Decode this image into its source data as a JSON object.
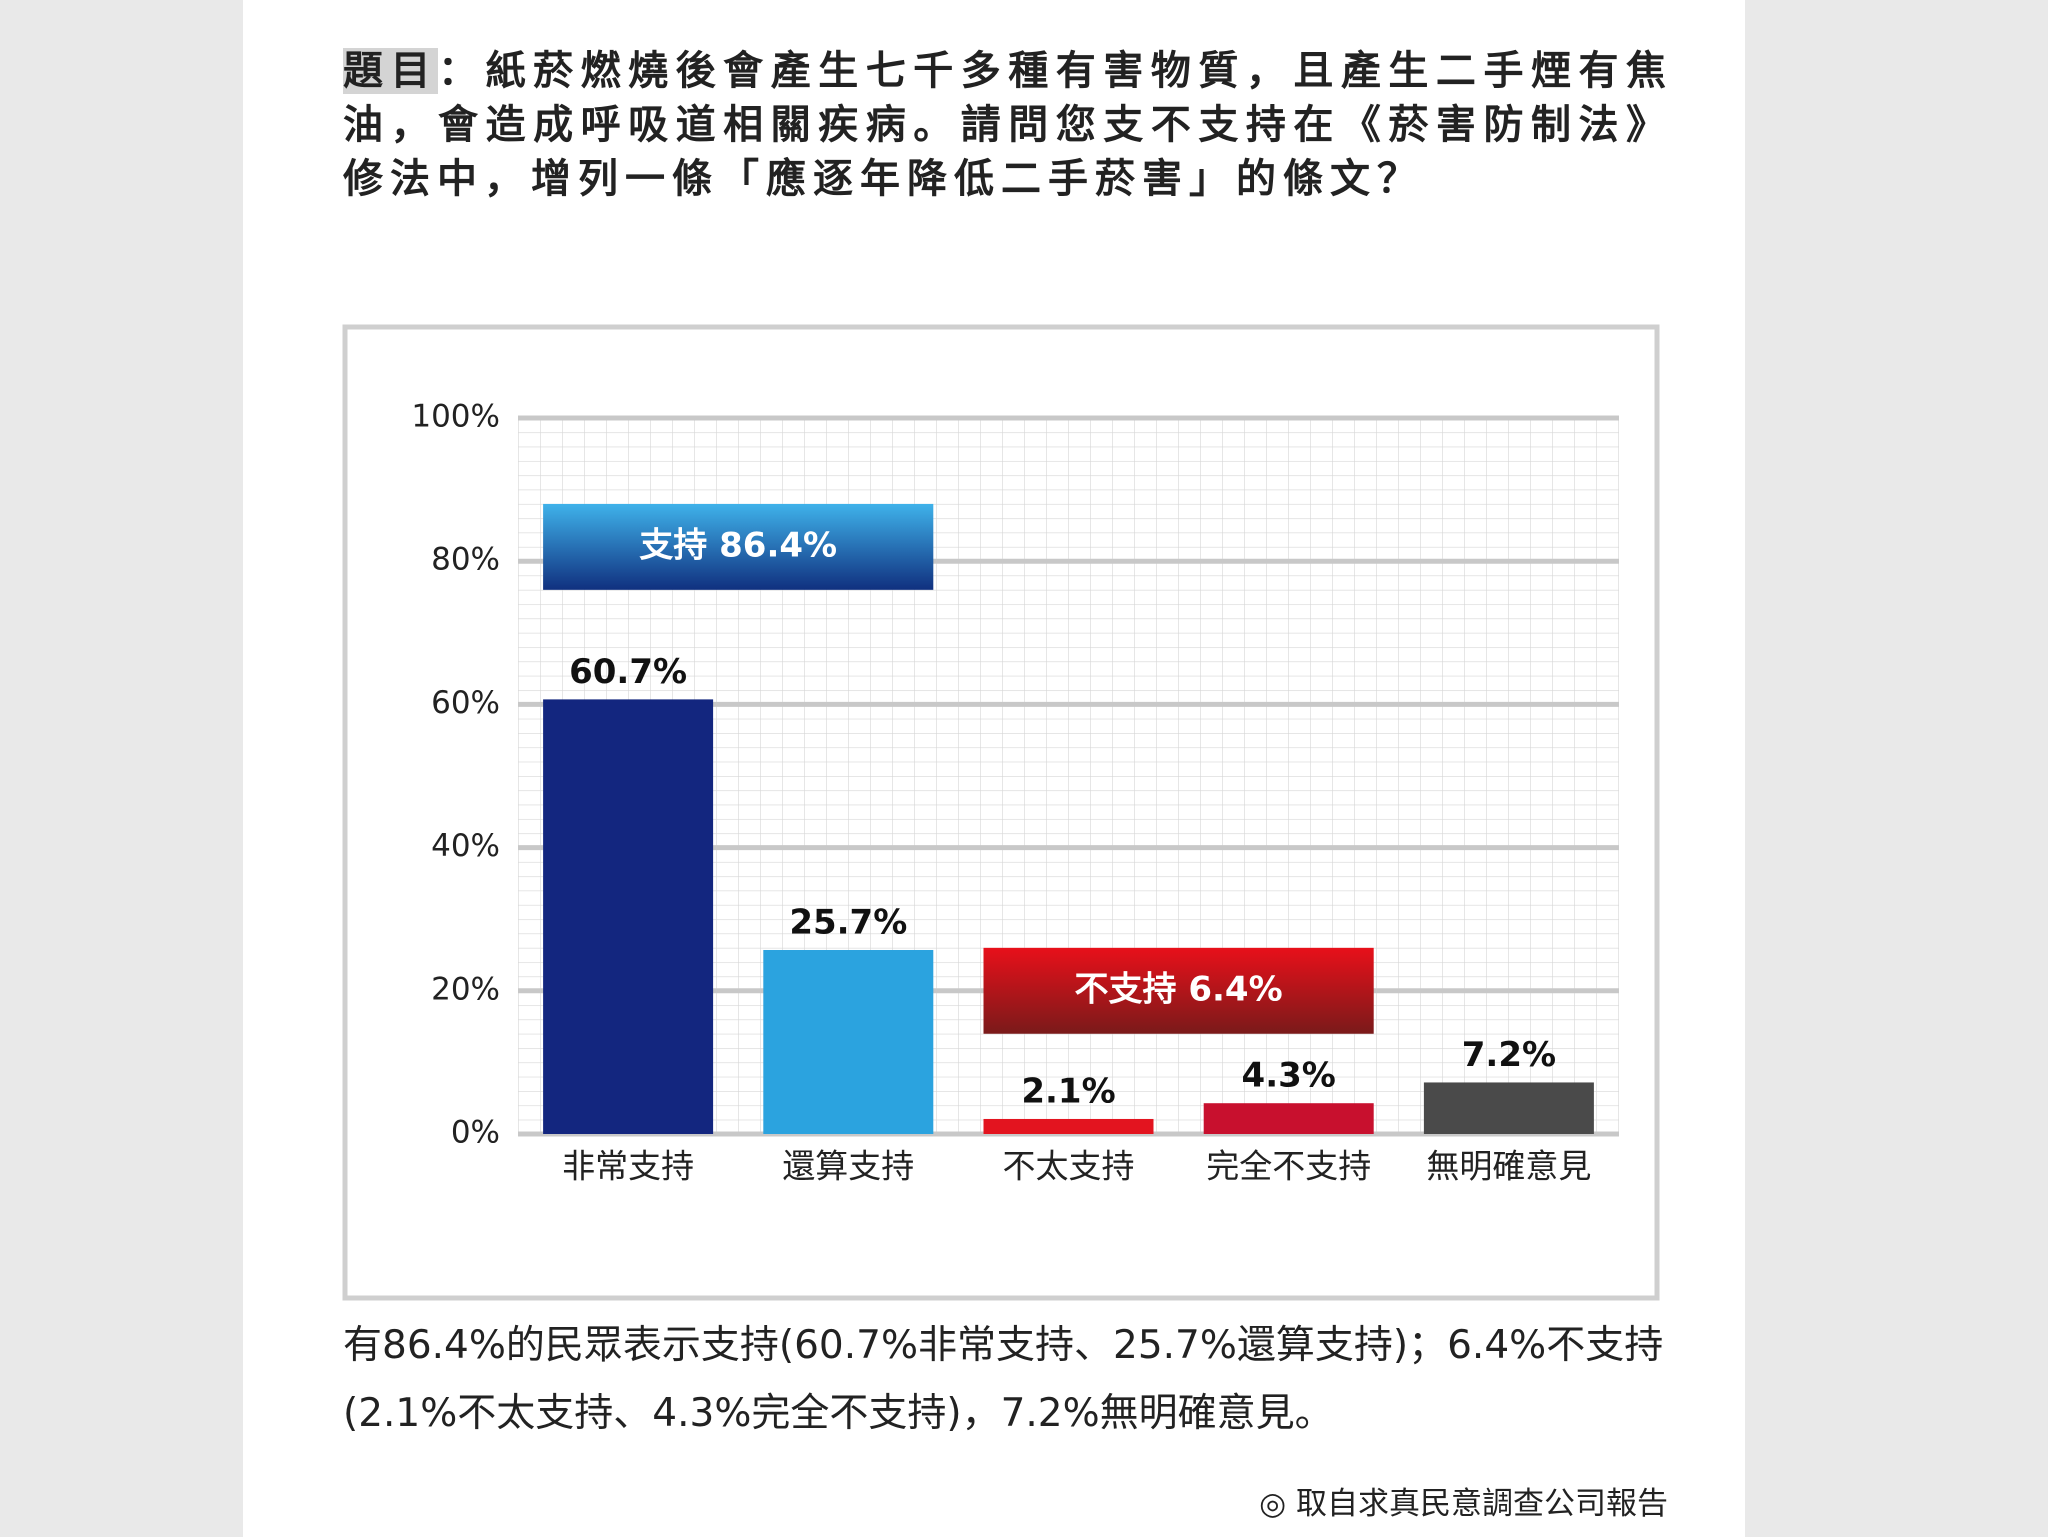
{
  "title_label": "題目",
  "title": "：紙菸燃燒後會產生七千多種有害物質，且產生二手煙有焦油，會造成呼吸道相關疾病。請問您支不支持在《菸害防制法》修法中，增列一條「應逐年降低二手菸害」的條文？",
  "chart_data": {
    "type": "bar",
    "categories": [
      "非常支持",
      "還算支持",
      "不太支持",
      "完全不支持",
      "無明確意見"
    ],
    "values": [
      60.7,
      25.7,
      2.1,
      4.3,
      7.2
    ],
    "value_labels": [
      "60.7%",
      "25.7%",
      "2.1%",
      "4.3%",
      "7.2%"
    ],
    "colors": [
      "#13267f",
      "#2ba3df",
      "#e3141f",
      "#c8102e",
      "#4a4a4a"
    ],
    "ylim": [
      0,
      100
    ],
    "yticks": [
      {
        "value": 0,
        "label": "0%"
      },
      {
        "value": 20,
        "label": "20%"
      },
      {
        "value": 40,
        "label": "40%"
      },
      {
        "value": 60,
        "label": "60%"
      },
      {
        "value": 80,
        "label": "80%"
      },
      {
        "value": 100,
        "label": "100%"
      }
    ],
    "grid": true,
    "annotations": [
      "支持 86.4%",
      "不支持 6.4%"
    ]
  },
  "summary": "有86.4%的民眾表示支持(60.7%非常支持、25.7%還算支持)；6.4%不支持(2.1%不太支持、4.3%完全不支持)，7.2%無明確意見。",
  "source": "◎ 取自求真民意調查公司報告"
}
